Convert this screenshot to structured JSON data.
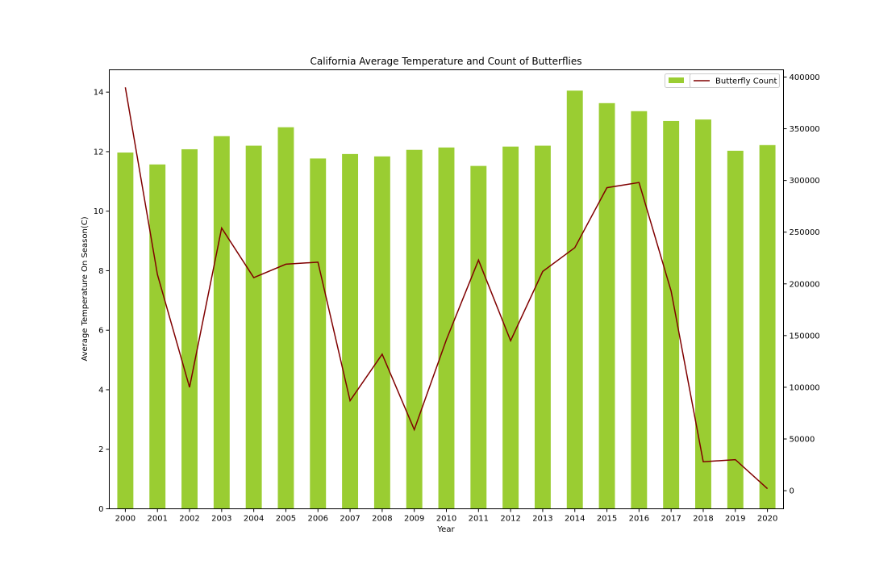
{
  "chart_data": {
    "type": "bar",
    "title": "California Average Temperature and Count of Butterflies",
    "xlabel": "Year",
    "ylabel": "Average Temperature On Season(C)",
    "y2label": "",
    "categories": [
      "2000",
      "2001",
      "2002",
      "2003",
      "2004",
      "2005",
      "2006",
      "2007",
      "2008",
      "2009",
      "2010",
      "2011",
      "2012",
      "2013",
      "2014",
      "2015",
      "2016",
      "2017",
      "2018",
      "2019",
      "2020"
    ],
    "series": [
      {
        "type": "bar",
        "axis": "left",
        "color": "#9acd32",
        "values": [
          11.97,
          11.57,
          12.08,
          12.52,
          12.2,
          12.82,
          11.77,
          11.92,
          11.84,
          12.06,
          12.14,
          11.52,
          12.17,
          12.2,
          14.05,
          13.63,
          13.36,
          13.03,
          13.08,
          12.03,
          12.22
        ]
      },
      {
        "type": "line",
        "axis": "right",
        "name": "Butterfly Count",
        "color": "#800000",
        "values": [
          390000,
          209000,
          100000,
          254000,
          206000,
          219000,
          221000,
          87000,
          132000,
          59000,
          146000,
          223000,
          145000,
          212000,
          235000,
          293000,
          298000,
          193000,
          28000,
          30000,
          2000
        ]
      }
    ],
    "ylim": [
      0,
      14.75
    ],
    "y2lim": [
      -17500,
      407000
    ],
    "yticks": [
      0,
      2,
      4,
      6,
      8,
      10,
      12,
      14
    ],
    "y2ticks": [
      0,
      50000,
      100000,
      150000,
      200000,
      250000,
      300000,
      350000,
      400000
    ],
    "legend": {
      "placement": "top-right",
      "entries": [
        {
          "label": "",
          "kind": "bar",
          "color": "#9acd32"
        },
        {
          "label": "Butterfly Count",
          "kind": "line",
          "color": "#800000"
        }
      ]
    },
    "grid": false
  }
}
